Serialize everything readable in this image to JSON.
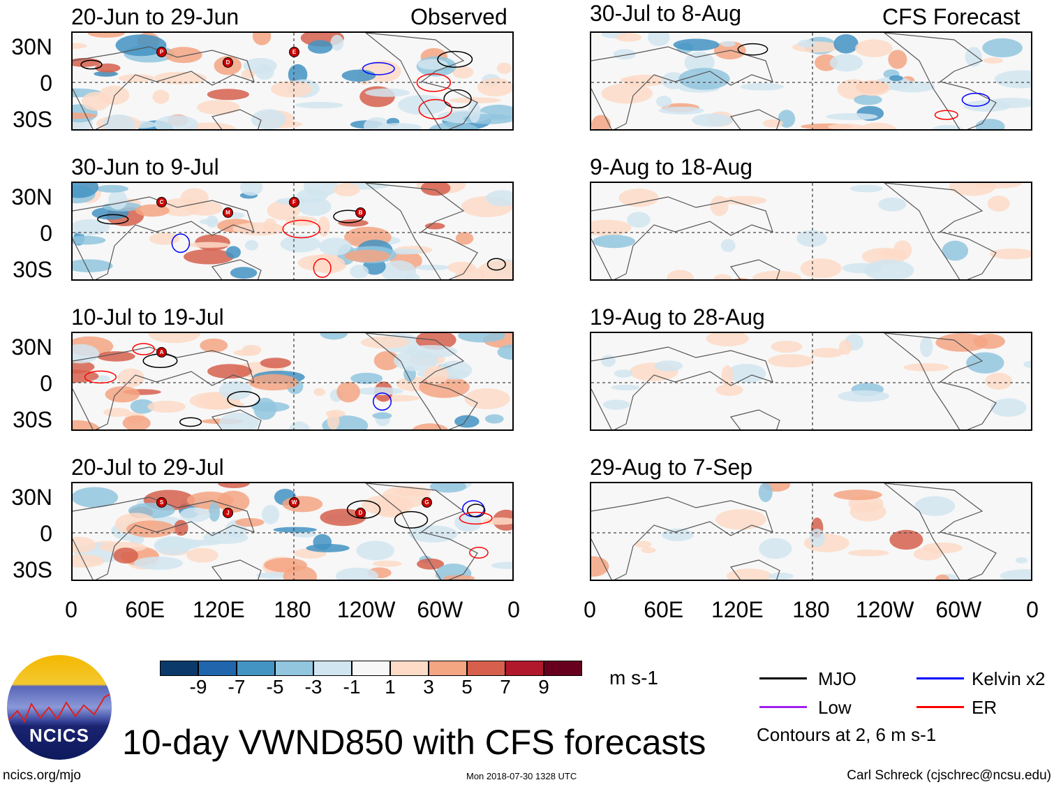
{
  "observed_label": "Observed",
  "forecast_label": "CFS Forecast",
  "observed_panels": [
    {
      "title": "20-Jun to 29-Jun",
      "storms": [
        "P",
        "D",
        "E"
      ]
    },
    {
      "title": "30-Jun to 9-Jul",
      "storms": [
        "C",
        "M",
        "F",
        "B"
      ]
    },
    {
      "title": "10-Jul to 19-Jul",
      "storms": [
        "A"
      ]
    },
    {
      "title": "20-Jul to 29-Jul",
      "storms": [
        "S",
        "J",
        "W",
        "D",
        "G"
      ]
    }
  ],
  "forecast_panels": [
    {
      "title": "30-Jul to 8-Aug"
    },
    {
      "title": "9-Aug to 18-Aug"
    },
    {
      "title": "19-Aug to 28-Aug"
    },
    {
      "title": "29-Aug to 7-Sep"
    }
  ],
  "y_ticks": [
    "30N",
    "0",
    "30S"
  ],
  "x_ticks": [
    "0",
    "60E",
    "120E",
    "180",
    "120W",
    "60W",
    "0"
  ],
  "colorbar": {
    "colors": [
      "#0b3a6a",
      "#2166ac",
      "#4393c3",
      "#92c5de",
      "#d1e5f0",
      "#f7f7f7",
      "#fddbc7",
      "#f4a582",
      "#d6604d",
      "#b2182b",
      "#67001f"
    ],
    "labels": [
      "-9",
      "-7",
      "-5",
      "-3",
      "-1",
      "1",
      "3",
      "5",
      "7",
      "9"
    ],
    "units": "m s-1"
  },
  "legend": [
    {
      "label": "MJO",
      "color": "#000000"
    },
    {
      "label": "Kelvin x2",
      "color": "#0000ff"
    },
    {
      "label": "Low",
      "color": "#a020f0"
    },
    {
      "label": "ER",
      "color": "#ff0000"
    }
  ],
  "contours_note": "Contours at 2, 6 m s-1",
  "title": "10-day VWND850 with CFS forecasts",
  "logo_text": "NCICS",
  "footer": {
    "left": "ncics.org/mjo",
    "center": "Mon 2018-07-30 1328 UTC",
    "right": "Carl Schreck (cjschrec@ncsu.edu)"
  }
}
